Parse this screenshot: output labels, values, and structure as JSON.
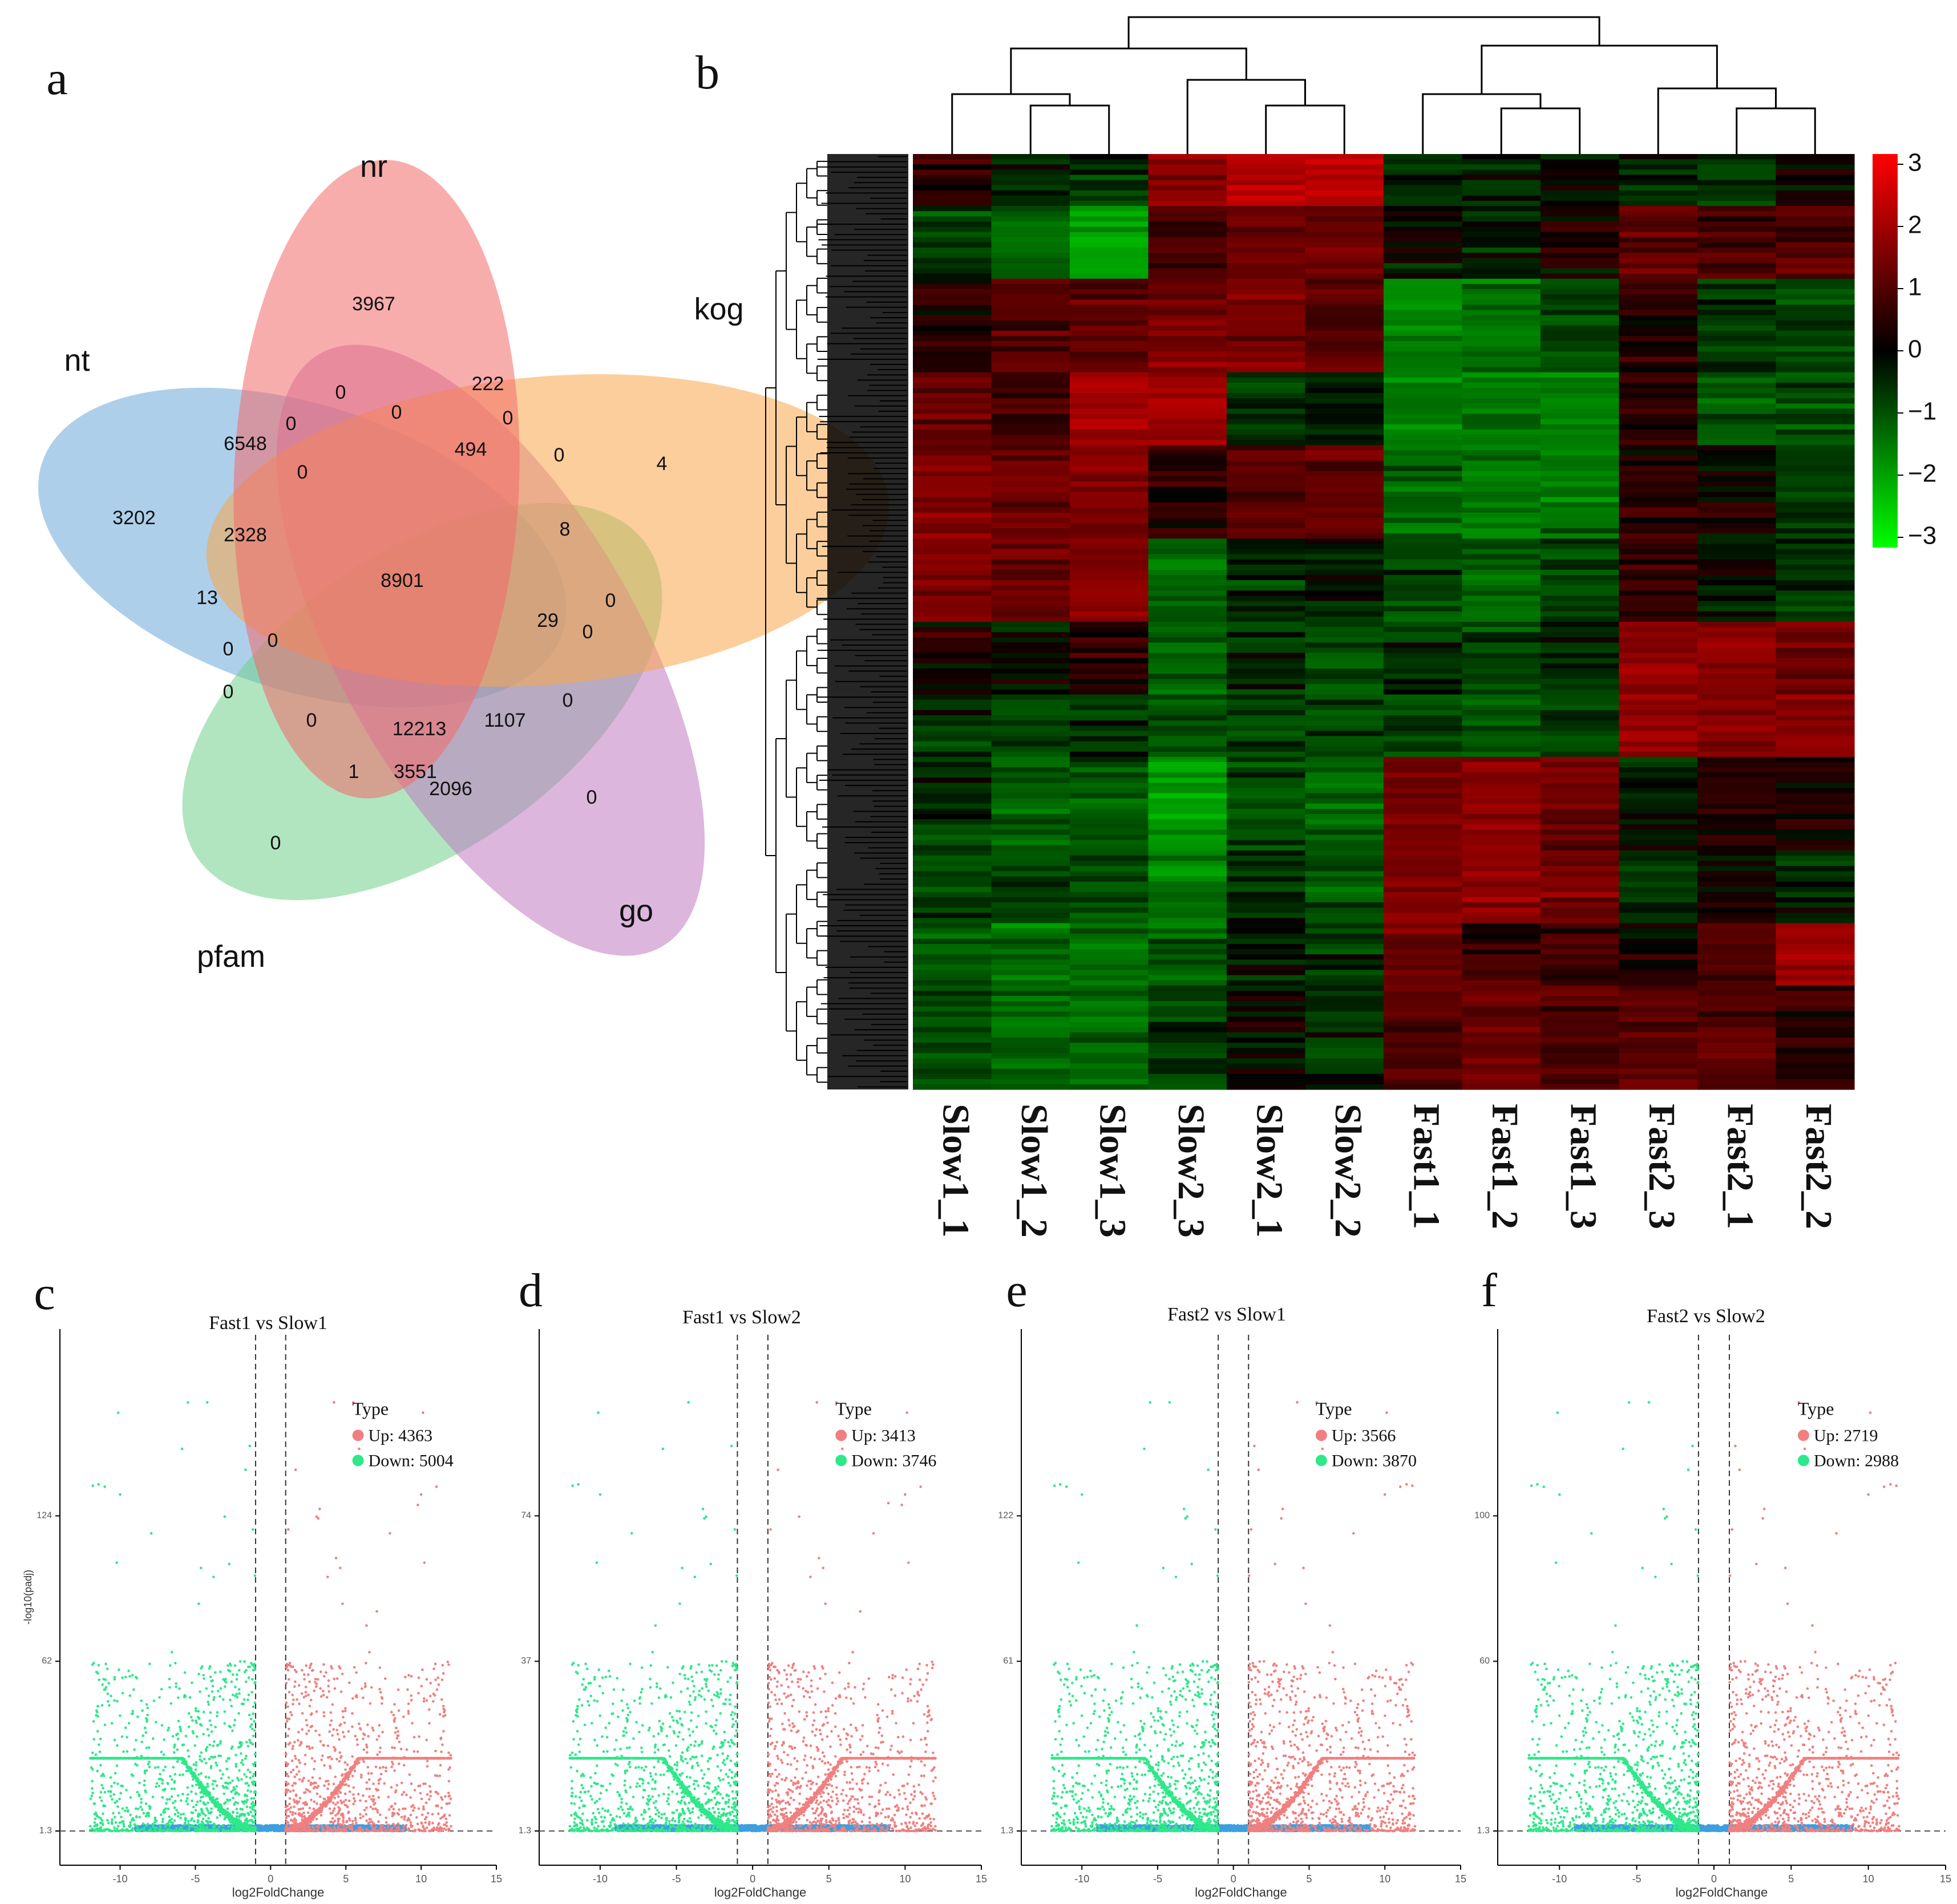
{
  "chart_data": [
    {
      "type": "venn",
      "panel": "a",
      "sets": [
        "nr",
        "kog",
        "go",
        "pfam",
        "nt"
      ],
      "set_labels": {
        "nr": "nr",
        "kog": "kog",
        "go": "go",
        "pfam": "pfam",
        "nt": "nt"
      },
      "set_colors": {
        "nr": "#f26a6a",
        "kog": "#f8a54b",
        "go": "#c07ac0",
        "pfam": "#6fcf8c",
        "nt": "#6ca8d8"
      },
      "regions": [
        "3967",
        "222",
        "4",
        "6548",
        "0",
        "0",
        "0",
        "0",
        "494",
        "0",
        "0",
        "3202",
        "2328",
        "8901",
        "8",
        "13",
        "29",
        "0",
        "0",
        "0",
        "0",
        "0",
        "0",
        "12213",
        "1107",
        "0",
        "1",
        "3551",
        "2096",
        "0",
        "0"
      ]
    },
    {
      "type": "heatmap",
      "panel": "b",
      "columns": [
        "Slow1_1",
        "Slow1_2",
        "Slow1_3",
        "Slow2_3",
        "Slow2_1",
        "Slow2_2",
        "Fast1_1",
        "Fast1_2",
        "Fast1_3",
        "Fast2_3",
        "Fast2_1",
        "Fast2_2"
      ],
      "colorbar": {
        "range": [
          -3,
          3
        ],
        "ticks": [
          "3",
          "2",
          "1",
          "0",
          "−1",
          "−2",
          "−3"
        ],
        "low": "#00ff00",
        "mid": "#000000",
        "high": "#ff0000"
      }
    },
    {
      "type": "scatter",
      "panel": "c",
      "title": "Fast1 vs Slow1",
      "xlabel": "log2FoldChange",
      "ylabel": "-log10(padj)",
      "xlim": [
        -14,
        15
      ],
      "xticks": [
        "-10",
        "-5",
        "0",
        "5",
        "10",
        "15"
      ],
      "yticks": [
        "1.3",
        "62",
        "124"
      ],
      "legend": {
        "title": "Type",
        "up": "Up: 4363",
        "down": "Down: 5004"
      },
      "colors": {
        "up": "#f08080",
        "down": "#2ee88a",
        "ns": "#3d9fe0"
      }
    },
    {
      "type": "scatter",
      "panel": "d",
      "title": "Fast1 vs Slow2",
      "xlabel": "log2FoldChange",
      "ylabel": "",
      "xlim": [
        -14,
        15
      ],
      "xticks": [
        "-10",
        "-5",
        "0",
        "5",
        "10",
        "15"
      ],
      "yticks": [
        "1.3",
        "37",
        "74"
      ],
      "legend": {
        "title": "Type",
        "up": "Up: 3413",
        "down": "Down: 3746"
      },
      "colors": {
        "up": "#f08080",
        "down": "#2ee88a",
        "ns": "#3d9fe0"
      }
    },
    {
      "type": "scatter",
      "panel": "e",
      "title": "Fast2 vs Slow1",
      "xlabel": "log2FoldChange",
      "ylabel": "",
      "xlim": [
        -14,
        15
      ],
      "xticks": [
        "-10",
        "-5",
        "0",
        "5",
        "10",
        "15"
      ],
      "yticks": [
        "1.3",
        "61",
        "122"
      ],
      "legend": {
        "title": "Type",
        "up": "Up: 3566",
        "down": "Down: 3870"
      },
      "colors": {
        "up": "#f08080",
        "down": "#2ee88a",
        "ns": "#3d9fe0"
      }
    },
    {
      "type": "scatter",
      "panel": "f",
      "title": "Fast2 vs Slow2",
      "xlabel": "log2FoldChange",
      "ylabel": "",
      "xlim": [
        -14,
        15
      ],
      "xticks": [
        "-10",
        "-5",
        "0",
        "5",
        "10",
        "15"
      ],
      "yticks": [
        "1.3",
        "60",
        "100"
      ],
      "legend": {
        "title": "Type",
        "up": "Up: 2719",
        "down": "Down: 2988"
      },
      "colors": {
        "up": "#f08080",
        "down": "#2ee88a",
        "ns": "#3d9fe0"
      }
    }
  ],
  "panel_letters": {
    "a": "a",
    "b": "b",
    "c": "c",
    "d": "d",
    "e": "e",
    "f": "f"
  }
}
